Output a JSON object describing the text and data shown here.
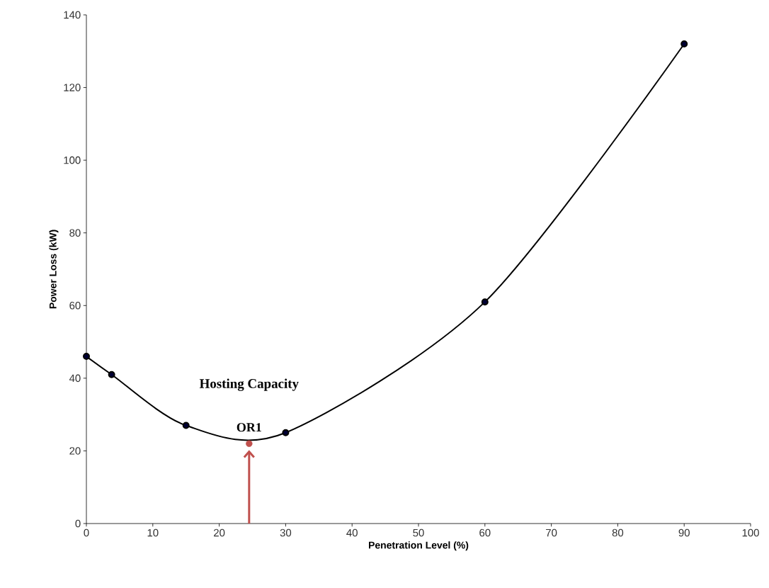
{
  "chart_data": {
    "type": "line",
    "xlabel": "Penetration Level (%)",
    "ylabel": "Power Loss (kW)",
    "x": [
      0,
      3.8,
      15,
      30,
      60,
      90
    ],
    "series": [
      {
        "color": "#000000",
        "marker": "circle",
        "values": [
          46,
          41,
          27,
          25,
          61,
          132
        ]
      },
      {
        "type": "scatter",
        "color": "#c0504d",
        "marker": "circle",
        "x": [
          24.5
        ],
        "values": [
          22
        ]
      }
    ],
    "xlim": [
      0,
      100
    ],
    "xticks": [
      0,
      10,
      20,
      30,
      40,
      50,
      60,
      70,
      80,
      90,
      100
    ],
    "ylim": [
      0,
      140
    ],
    "yticks": [
      0,
      20,
      40,
      60,
      80,
      100,
      120,
      140
    ],
    "grid": false,
    "annotations": [
      {
        "text": "OR1",
        "x": 24.5,
        "y": 22
      },
      "Hosting Capacity"
    ]
  }
}
